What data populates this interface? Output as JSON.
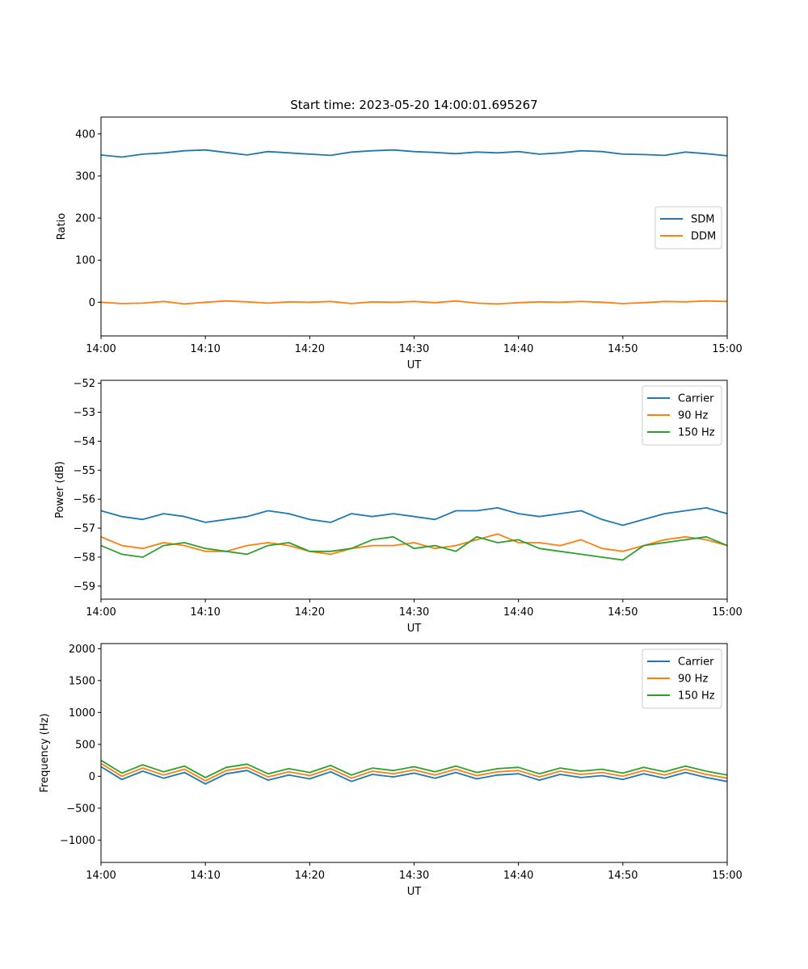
{
  "chart_data": [
    {
      "type": "line",
      "title": "Start time: 2023-05-20 14:00:01.695267",
      "xlabel": "UT",
      "ylabel": "Ratio",
      "xlim": [
        "14:00",
        "15:00"
      ],
      "ylim": [
        -80,
        440
      ],
      "xticks": [
        "14:00",
        "14:10",
        "14:20",
        "14:30",
        "14:40",
        "14:50",
        "15:00"
      ],
      "yticks": [
        0,
        100,
        200,
        300,
        400
      ],
      "ytick_labels": [
        "0",
        "100",
        "200",
        "300",
        "400"
      ],
      "legend_position": "center-right",
      "grid": false,
      "x": [
        "14:00",
        "14:02",
        "14:04",
        "14:06",
        "14:08",
        "14:10",
        "14:12",
        "14:14",
        "14:16",
        "14:18",
        "14:20",
        "14:22",
        "14:24",
        "14:26",
        "14:28",
        "14:30",
        "14:32",
        "14:34",
        "14:36",
        "14:38",
        "14:40",
        "14:42",
        "14:44",
        "14:46",
        "14:48",
        "14:50",
        "14:52",
        "14:54",
        "14:56",
        "14:58",
        "15:00"
      ],
      "series": [
        {
          "name": "SDM",
          "color": "#1f77b4",
          "values": [
            350,
            345,
            352,
            355,
            360,
            362,
            356,
            350,
            358,
            355,
            352,
            349,
            357,
            360,
            362,
            358,
            356,
            353,
            357,
            355,
            358,
            352,
            355,
            360,
            358,
            352,
            351,
            349,
            357,
            353,
            348
          ]
        },
        {
          "name": "DDM",
          "color": "#ff7f0e",
          "values": [
            0,
            -3,
            -2,
            2,
            -4,
            0,
            3,
            1,
            -2,
            1,
            0,
            2,
            -3,
            1,
            0,
            2,
            -1,
            3,
            -2,
            -4,
            -1,
            1,
            0,
            2,
            0,
            -3,
            -1,
            2,
            1,
            3,
            2
          ]
        }
      ]
    },
    {
      "type": "line",
      "title": "",
      "xlabel": "UT",
      "ylabel": "Power (dB)",
      "xlim": [
        "14:00",
        "15:00"
      ],
      "ylim": [
        -59.45,
        -51.9
      ],
      "xticks": [
        "14:00",
        "14:10",
        "14:20",
        "14:30",
        "14:40",
        "14:50",
        "15:00"
      ],
      "yticks": [
        -59,
        -58,
        -57,
        -56,
        -55,
        -54,
        -53,
        -52
      ],
      "ytick_labels": [
        "−59",
        "−58",
        "−57",
        "−56",
        "−55",
        "−54",
        "−53",
        "−52"
      ],
      "legend_position": "upper right",
      "grid": false,
      "x": [
        "14:00",
        "14:02",
        "14:04",
        "14:06",
        "14:08",
        "14:10",
        "14:12",
        "14:14",
        "14:16",
        "14:18",
        "14:20",
        "14:22",
        "14:24",
        "14:26",
        "14:28",
        "14:30",
        "14:32",
        "14:34",
        "14:36",
        "14:38",
        "14:40",
        "14:42",
        "14:44",
        "14:46",
        "14:48",
        "14:50",
        "14:52",
        "14:54",
        "14:56",
        "14:58",
        "15:00"
      ],
      "series": [
        {
          "name": "Carrier",
          "color": "#1f77b4",
          "values": [
            -56.4,
            -56.6,
            -56.7,
            -56.5,
            -56.6,
            -56.8,
            -56.7,
            -56.6,
            -56.4,
            -56.5,
            -56.7,
            -56.8,
            -56.5,
            -56.6,
            -56.5,
            -56.6,
            -56.7,
            -56.4,
            -56.4,
            -56.3,
            -56.5,
            -56.6,
            -56.5,
            -56.4,
            -56.7,
            -56.9,
            -56.7,
            -56.5,
            -56.4,
            -56.3,
            -56.5
          ]
        },
        {
          "name": "90 Hz",
          "color": "#ff7f0e",
          "values": [
            -57.3,
            -57.6,
            -57.7,
            -57.5,
            -57.6,
            -57.8,
            -57.8,
            -57.6,
            -57.5,
            -57.6,
            -57.8,
            -57.9,
            -57.7,
            -57.6,
            -57.6,
            -57.5,
            -57.7,
            -57.6,
            -57.4,
            -57.2,
            -57.5,
            -57.5,
            -57.6,
            -57.4,
            -57.7,
            -57.8,
            -57.6,
            -57.4,
            -57.3,
            -57.4,
            -57.6
          ]
        },
        {
          "name": "150 Hz",
          "color": "#2ca02c",
          "values": [
            -57.6,
            -57.9,
            -58.0,
            -57.6,
            -57.5,
            -57.7,
            -57.8,
            -57.9,
            -57.6,
            -57.5,
            -57.8,
            -57.8,
            -57.7,
            -57.4,
            -57.3,
            -57.7,
            -57.6,
            -57.8,
            -57.3,
            -57.5,
            -57.4,
            -57.7,
            -57.8,
            -57.9,
            -58.0,
            -58.1,
            -57.6,
            -57.5,
            -57.4,
            -57.3,
            -57.6
          ]
        }
      ]
    },
    {
      "type": "line",
      "title": "",
      "xlabel": "UT",
      "ylabel": "Frequency (Hz)",
      "xlim": [
        "14:00",
        "15:00"
      ],
      "ylim": [
        -1350,
        2080
      ],
      "xticks": [
        "14:00",
        "14:10",
        "14:20",
        "14:30",
        "14:40",
        "14:50",
        "15:00"
      ],
      "yticks": [
        -1000,
        -500,
        0,
        500,
        1000,
        1500,
        2000
      ],
      "ytick_labels": [
        "−1000",
        "−500",
        "0",
        "500",
        "1000",
        "1500",
        "2000"
      ],
      "legend_position": "upper right",
      "grid": false,
      "x": [
        "14:00",
        "14:02",
        "14:04",
        "14:06",
        "14:08",
        "14:10",
        "14:12",
        "14:14",
        "14:16",
        "14:18",
        "14:20",
        "14:22",
        "14:24",
        "14:26",
        "14:28",
        "14:30",
        "14:32",
        "14:34",
        "14:36",
        "14:38",
        "14:40",
        "14:42",
        "14:44",
        "14:46",
        "14:48",
        "14:50",
        "14:52",
        "14:54",
        "14:56",
        "14:58",
        "15:00"
      ],
      "series": [
        {
          "name": "Carrier",
          "color": "#1f77b4",
          "values": [
            150,
            -50,
            80,
            -30,
            60,
            -120,
            40,
            90,
            -60,
            20,
            -40,
            70,
            -80,
            30,
            -10,
            50,
            -30,
            60,
            -40,
            20,
            40,
            -60,
            30,
            -20,
            10,
            -50,
            40,
            -30,
            60,
            -20,
            -80
          ]
        },
        {
          "name": "90 Hz",
          "color": "#ff7f0e",
          "values": [
            200,
            0,
            130,
            20,
            110,
            -70,
            90,
            140,
            -10,
            70,
            10,
            120,
            -30,
            80,
            40,
            100,
            20,
            110,
            10,
            70,
            90,
            -10,
            80,
            30,
            60,
            0,
            90,
            20,
            110,
            30,
            -30
          ]
        },
        {
          "name": "150 Hz",
          "color": "#2ca02c",
          "values": [
            250,
            50,
            180,
            70,
            160,
            -20,
            140,
            190,
            40,
            120,
            60,
            170,
            20,
            130,
            90,
            150,
            70,
            160,
            60,
            120,
            140,
            40,
            130,
            80,
            110,
            50,
            140,
            70,
            160,
            80,
            20
          ]
        }
      ]
    }
  ]
}
